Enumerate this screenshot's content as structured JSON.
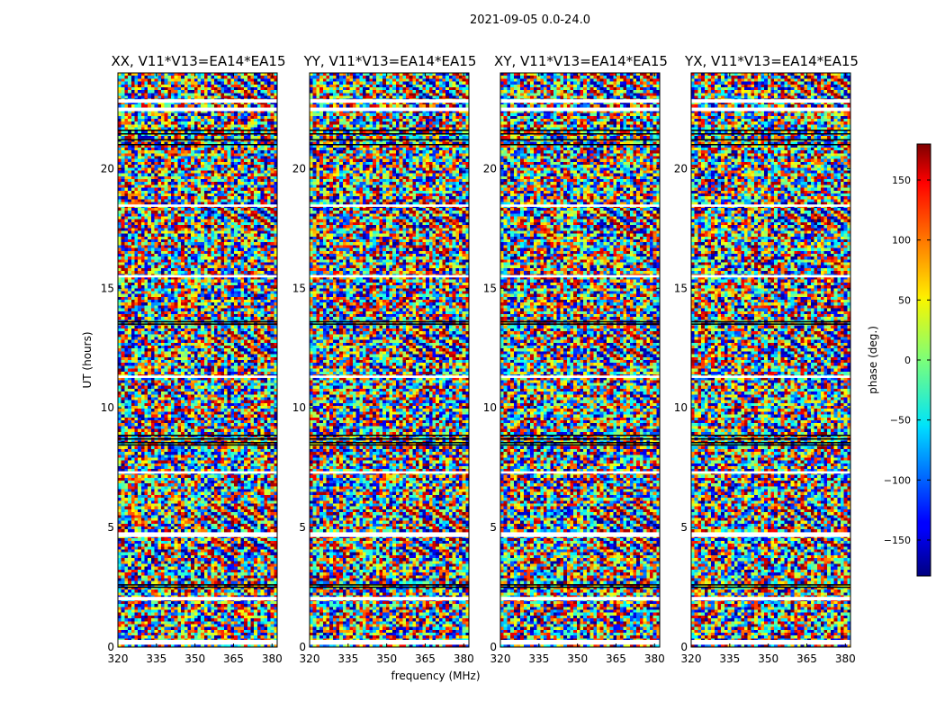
{
  "chart_data": {
    "type": "heatmap",
    "suptitle": "2021-09-05 0.0-24.0",
    "xlabel": "frequency (MHz)",
    "ylabel": "UT (hours)",
    "xlim": [
      320,
      382
    ],
    "ylim": [
      0,
      24
    ],
    "xticks": [
      "320",
      "335",
      "350",
      "365",
      "380"
    ],
    "yticks": [
      "0",
      "5",
      "10",
      "15",
      "20"
    ],
    "xtick_values": [
      320,
      335,
      350,
      365,
      380
    ],
    "ytick_values": [
      0,
      5,
      10,
      15,
      20
    ],
    "panels": [
      {
        "title": "XX, V11*V13=EA14*EA15",
        "polarization": "XX"
      },
      {
        "title": "YY, V11*V13=EA14*EA15",
        "polarization": "YY"
      },
      {
        "title": "XY, V11*V13=EA14*EA15",
        "polarization": "XY"
      },
      {
        "title": "YX, V11*V13=EA14*EA15",
        "polarization": "YX"
      }
    ],
    "colorbar": {
      "label": "phase (deg.)",
      "range": [
        -180,
        180
      ],
      "ticks": [
        150,
        100,
        50,
        0,
        -50,
        -100,
        -150
      ],
      "tick_labels": [
        "150",
        "100",
        "50",
        "0",
        "−50",
        "−100",
        "−150"
      ],
      "colormap": "jet"
    },
    "flagged_ut_bands": [
      [
        0.1,
        0.3
      ],
      [
        1.95,
        2.1
      ],
      [
        4.6,
        4.8
      ],
      [
        7.25,
        7.35
      ],
      [
        11.25,
        11.35
      ],
      [
        15.45,
        15.55
      ],
      [
        18.4,
        18.5
      ],
      [
        22.4,
        22.55
      ],
      [
        22.75,
        22.9
      ]
    ],
    "dark_ut_lines": [
      2.5,
      2.6,
      8.45,
      8.55,
      8.7,
      8.85,
      13.5,
      13.6,
      21.0,
      21.2,
      21.45,
      21.6
    ]
  }
}
